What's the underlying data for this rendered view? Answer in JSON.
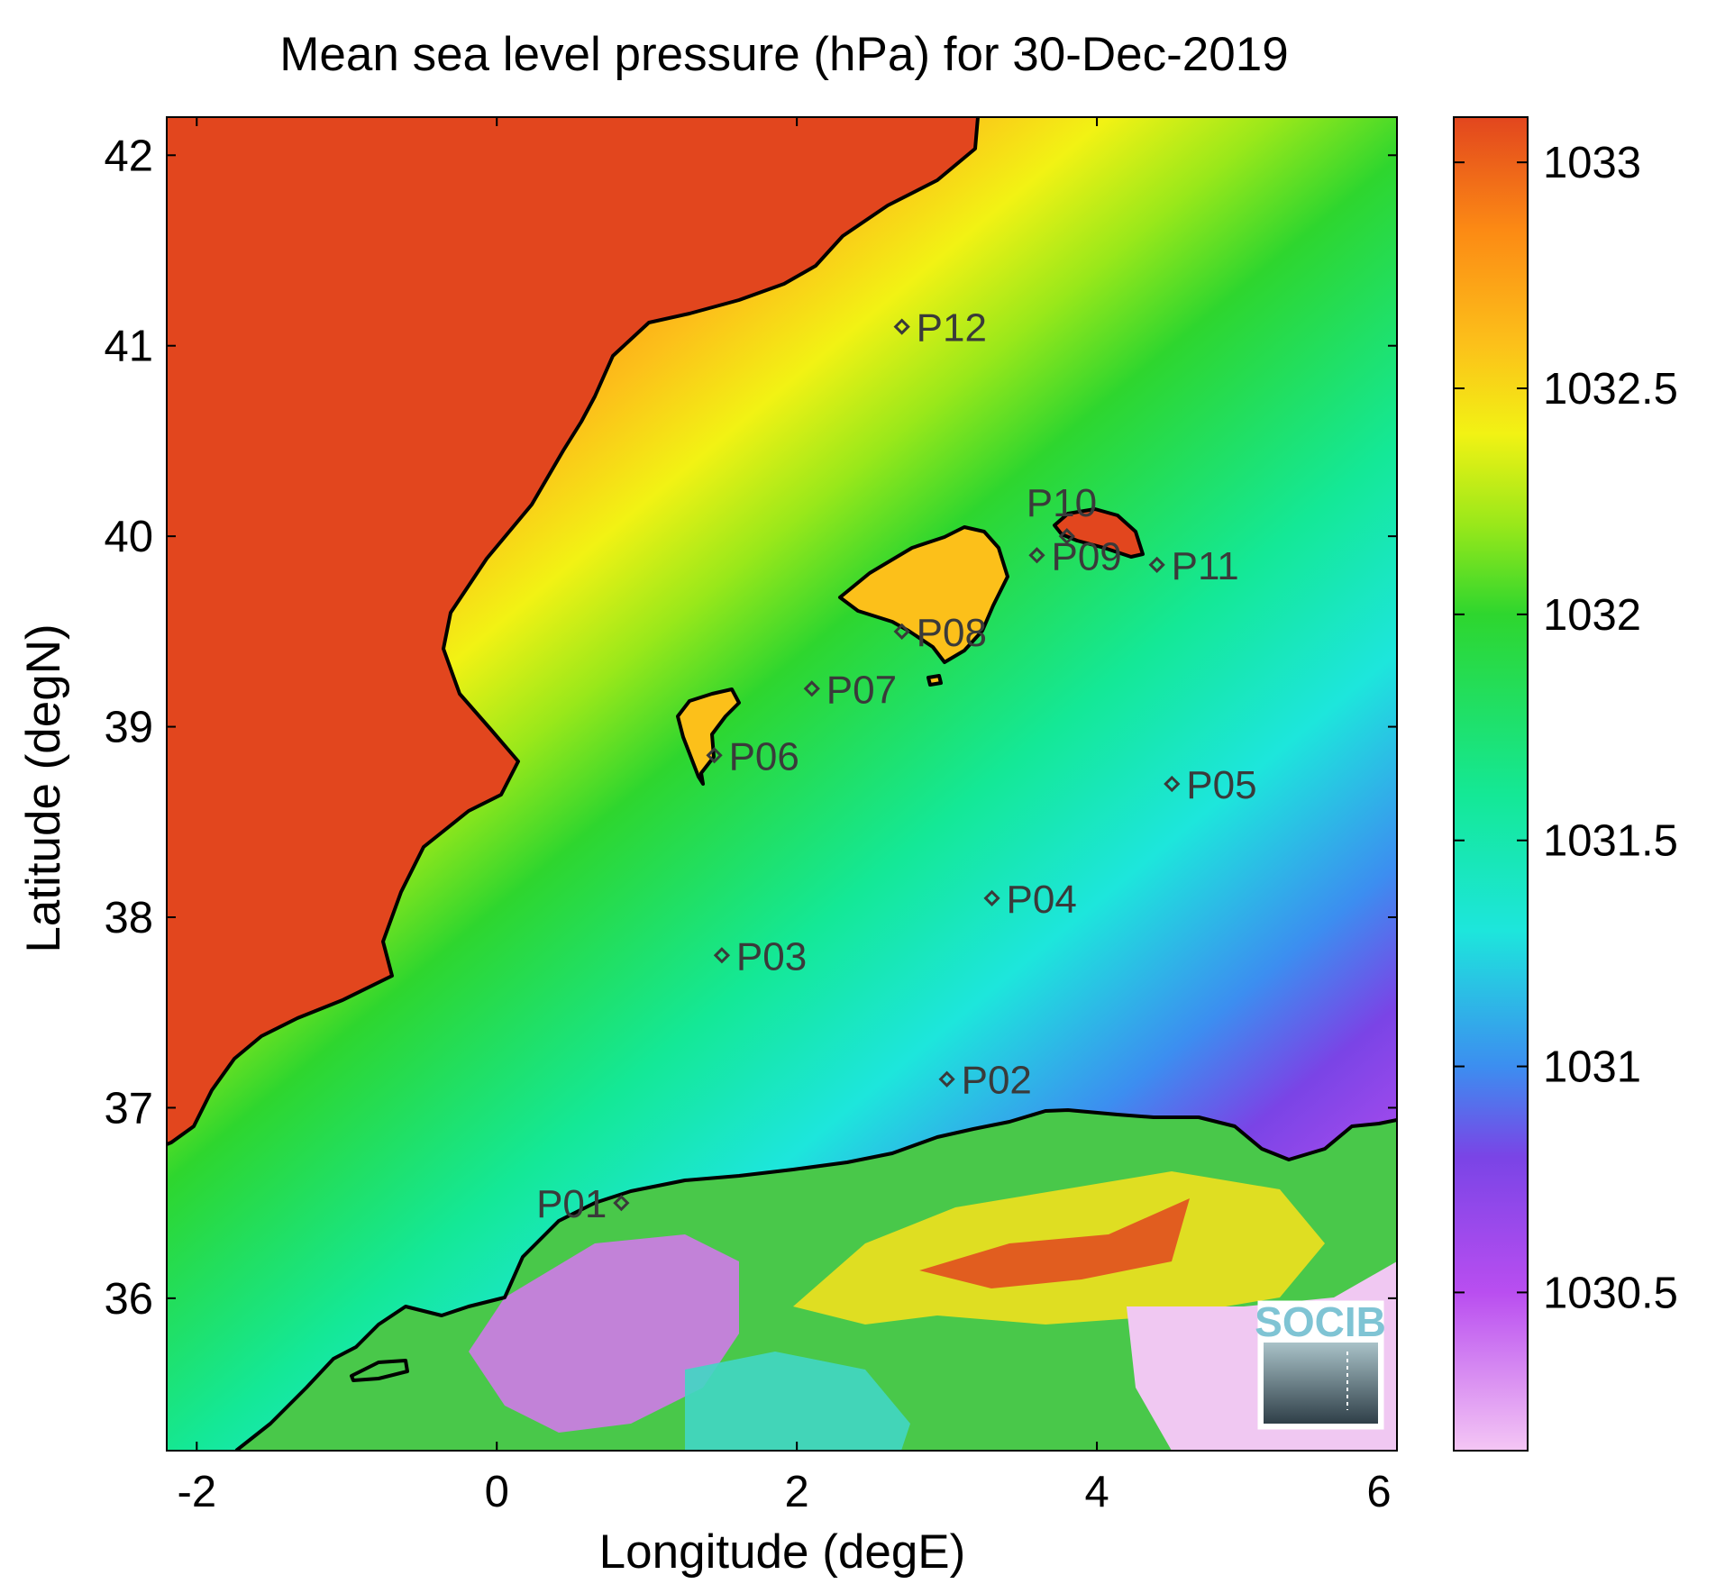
{
  "title": "Mean sea level pressure (hPa) for 30-Dec-2019",
  "axes": {
    "xlabel": "Longitude (degE)",
    "ylabel": "Latitude (degN)",
    "xlim": [
      -2.2,
      6.0
    ],
    "ylim": [
      35.2,
      42.2
    ],
    "xticks": [
      {
        "value": -2,
        "label": "-2"
      },
      {
        "value": 0,
        "label": "0"
      },
      {
        "value": 2,
        "label": "2"
      },
      {
        "value": 4,
        "label": "4"
      },
      {
        "value": 6,
        "label": "6"
      }
    ],
    "yticks": [
      {
        "value": 36,
        "label": "36"
      },
      {
        "value": 37,
        "label": "37"
      },
      {
        "value": 38,
        "label": "38"
      },
      {
        "value": 39,
        "label": "39"
      },
      {
        "value": 40,
        "label": "40"
      },
      {
        "value": 41,
        "label": "41"
      },
      {
        "value": 42,
        "label": "42"
      }
    ]
  },
  "colorbar": {
    "range": [
      1030.15,
      1033.1
    ],
    "ticks": [
      {
        "value": 1030.5,
        "label": "1030.5"
      },
      {
        "value": 1031,
        "label": "1031"
      },
      {
        "value": 1031.5,
        "label": "1031.5"
      },
      {
        "value": 1032,
        "label": "1032"
      },
      {
        "value": 1032.5,
        "label": "1032.5"
      },
      {
        "value": 1033,
        "label": "1033"
      }
    ],
    "stops": [
      {
        "value": 1030.15,
        "color": "#f4c6f4"
      },
      {
        "value": 1030.5,
        "color": "#b94ef0"
      },
      {
        "value": 1030.8,
        "color": "#7a44e6"
      },
      {
        "value": 1031.0,
        "color": "#3c8ef0"
      },
      {
        "value": 1031.3,
        "color": "#1de6dc"
      },
      {
        "value": 1031.6,
        "color": "#14e896"
      },
      {
        "value": 1032.0,
        "color": "#2ed62e"
      },
      {
        "value": 1032.2,
        "color": "#9ae81a"
      },
      {
        "value": 1032.4,
        "color": "#f2f214"
      },
      {
        "value": 1032.6,
        "color": "#fcc01a"
      },
      {
        "value": 1032.85,
        "color": "#fc8a14"
      },
      {
        "value": 1033.1,
        "color": "#e2461e"
      }
    ]
  },
  "chart_data": {
    "type": "heatmap",
    "variable": "Mean sea level pressure",
    "units": "hPa",
    "date": "30-Dec-2019",
    "stations": [
      {
        "id": "P01",
        "lon": 0.83,
        "lat": 36.5
      },
      {
        "id": "P02",
        "lon": 3.0,
        "lat": 37.15
      },
      {
        "id": "P03",
        "lon": 1.5,
        "lat": 37.8
      },
      {
        "id": "P04",
        "lon": 3.3,
        "lat": 38.1
      },
      {
        "id": "P05",
        "lon": 4.5,
        "lat": 38.7
      },
      {
        "id": "P06",
        "lon": 1.45,
        "lat": 38.85
      },
      {
        "id": "P07",
        "lon": 2.1,
        "lat": 39.2
      },
      {
        "id": "P08",
        "lon": 2.7,
        "lat": 39.5
      },
      {
        "id": "P09",
        "lon": 3.6,
        "lat": 39.9
      },
      {
        "id": "P10",
        "lon": 3.8,
        "lat": 40.0
      },
      {
        "id": "P11",
        "lon": 4.4,
        "lat": 39.85
      },
      {
        "id": "P12",
        "lon": 2.7,
        "lat": 41.1
      }
    ],
    "land_pressure": {
      "iberia": 1033.0,
      "north_africa": 1032.0
    },
    "sea_gradient": {
      "low": 1030.3,
      "high": 1033.0,
      "direction": "south-east to north-west"
    }
  },
  "logo": {
    "text": "SOCIB"
  },
  "colors": {
    "coastline": "#000000",
    "station_marker": "#3a3a3a",
    "frame": "#000000"
  }
}
